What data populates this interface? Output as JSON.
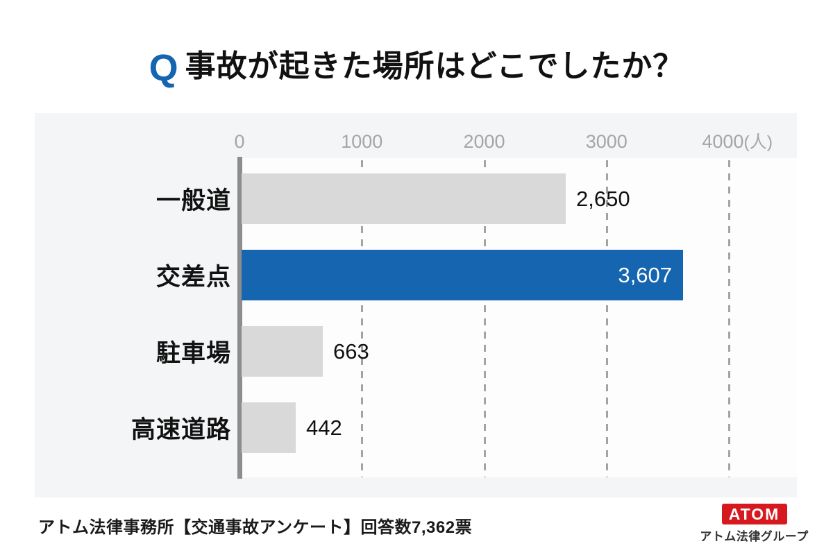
{
  "title": {
    "q_label": "Q",
    "text": "事故が起きた場所はどこでしたか？"
  },
  "chart_data": {
    "type": "bar",
    "orientation": "horizontal",
    "title": "事故が起きた場所はどこでしたか？",
    "categories": [
      "一般道",
      "交差点",
      "駐車場",
      "高速道路"
    ],
    "values": [
      2650,
      3607,
      663,
      442
    ],
    "value_labels": [
      "2,650",
      "3,607",
      "663",
      "442"
    ],
    "highlight_index": 1,
    "xlim": [
      0,
      4000
    ],
    "x_ticks": [
      0,
      1000,
      2000,
      3000,
      4000
    ],
    "x_tick_labels": [
      "0",
      "1000",
      "2000",
      "3000",
      "4000"
    ],
    "x_unit_suffix": "(人)",
    "grid": "vertical-dashed",
    "legend": "none",
    "colors": {
      "accent_blue": "#1565b0",
      "bar_default": "#d9d9d9",
      "value_text": "#111111",
      "value_text_highlight": "#ffffff",
      "axis_line": "#8d8d8d",
      "gridline": "#a3a3a3",
      "tick_text": "#a5a5a5"
    }
  },
  "footer": {
    "source": "アトム法律事務所【交通事故アンケート】回答数7,362票"
  },
  "logo": {
    "badge": "ATOM",
    "subtitle": "アトム法律グループ",
    "badge_color": "#d6181f"
  }
}
